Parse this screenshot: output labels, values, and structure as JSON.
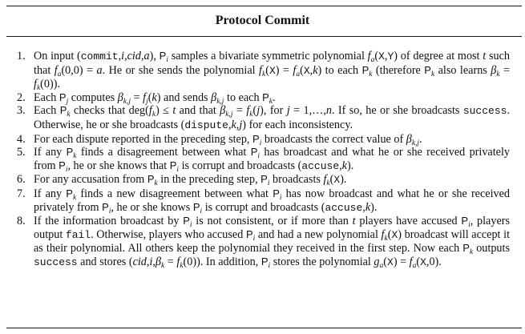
{
  "document": {
    "title": "Protocol Commit",
    "steps": [
      {
        "number": "1."
      },
      {
        "number": "2."
      },
      {
        "number": "3."
      },
      {
        "number": "4."
      },
      {
        "number": "5."
      },
      {
        "number": "6."
      },
      {
        "number": "7."
      },
      {
        "number": "8."
      }
    ]
  }
}
